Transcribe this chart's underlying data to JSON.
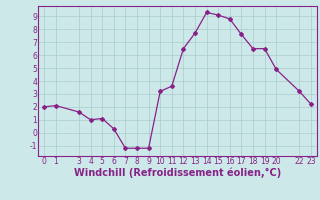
{
  "x": [
    0,
    1,
    3,
    4,
    5,
    6,
    7,
    8,
    9,
    10,
    11,
    12,
    13,
    14,
    15,
    16,
    17,
    18,
    19,
    20,
    22,
    23
  ],
  "y": [
    2.0,
    2.1,
    1.6,
    1.0,
    1.1,
    0.3,
    -1.2,
    -1.2,
    -1.2,
    3.2,
    3.6,
    6.5,
    7.7,
    9.3,
    9.1,
    8.8,
    7.6,
    6.5,
    6.5,
    4.9,
    3.2,
    2.2
  ],
  "line_color": "#882288",
  "marker": "D",
  "markersize": 2.0,
  "linewidth": 0.9,
  "bg_color": "#cce8e8",
  "grid_color": "#aacccc",
  "xlabel": "Windchill (Refroidissement éolien,°C)",
  "xlabel_color": "#882288",
  "xlabel_fontsize": 7,
  "xticks": [
    0,
    1,
    3,
    4,
    5,
    6,
    7,
    8,
    9,
    10,
    11,
    12,
    13,
    14,
    15,
    16,
    17,
    18,
    19,
    20,
    22,
    23
  ],
  "yticks": [
    -1,
    0,
    1,
    2,
    3,
    4,
    5,
    6,
    7,
    8,
    9
  ],
  "xlim": [
    -0.5,
    23.5
  ],
  "ylim": [
    -1.8,
    9.8
  ],
  "tick_fontsize": 5.5,
  "tick_color": "#882288",
  "spine_color": "#882288"
}
